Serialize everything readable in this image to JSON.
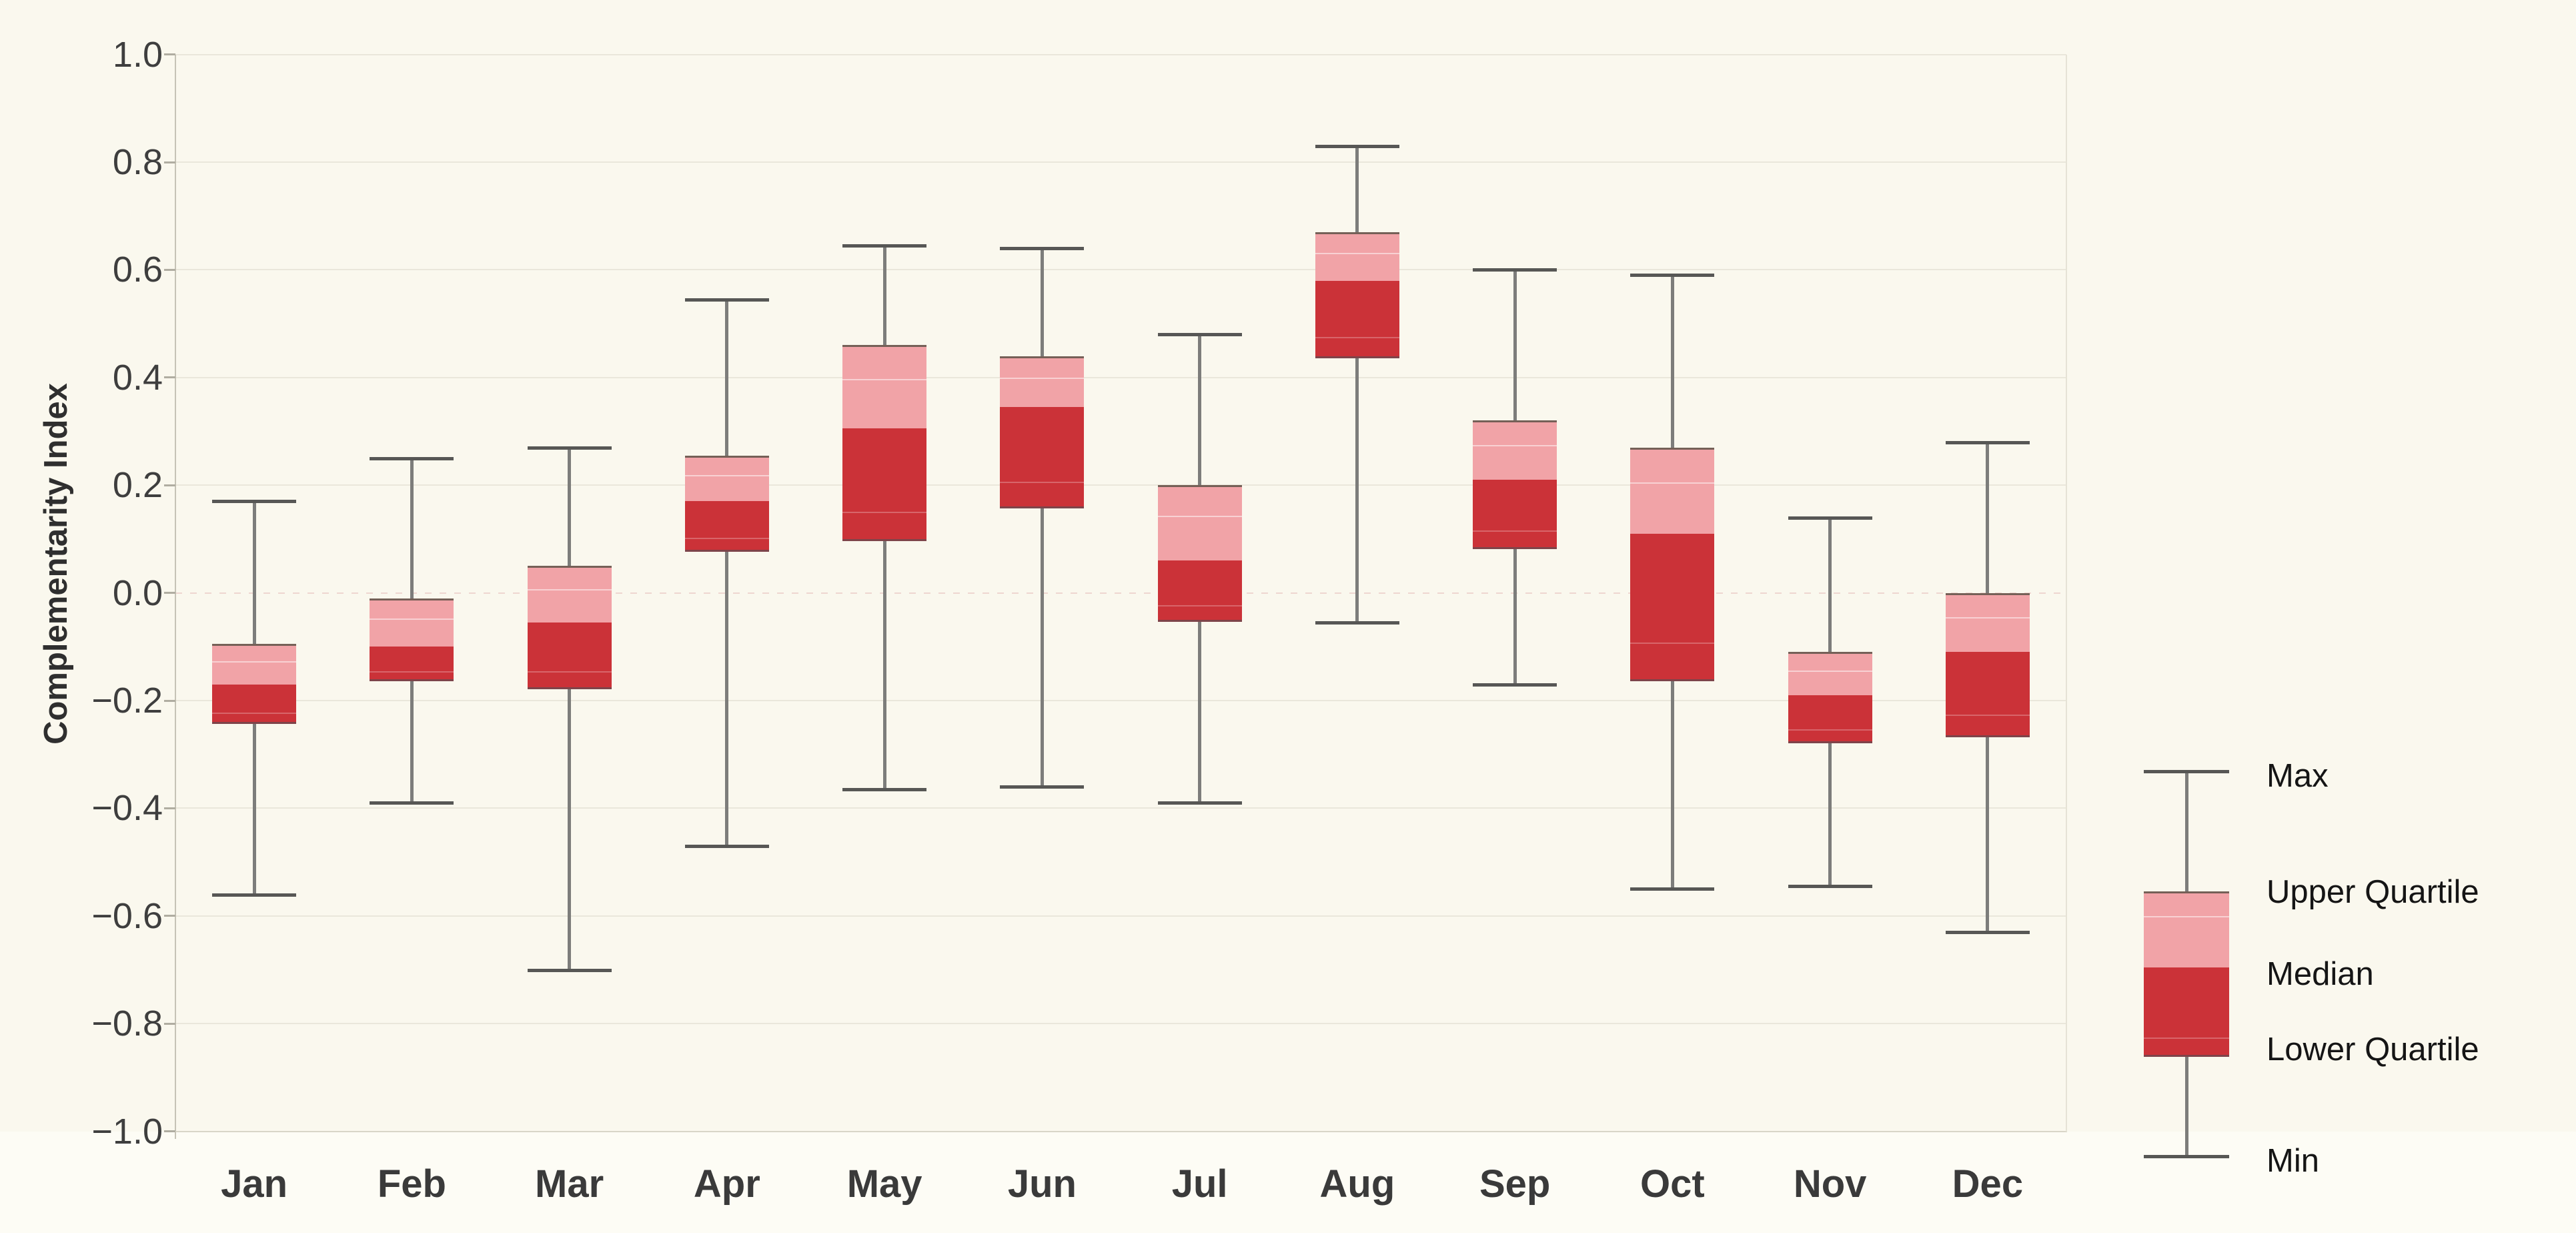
{
  "chart_data": {
    "type": "boxplot",
    "title": "",
    "ylabel": "Complementarity Index",
    "ylim": [
      -1.0,
      1.0
    ],
    "ytick_step": 0.2,
    "grid": "on",
    "legend_position": "right",
    "yticks": [
      {
        "v": 1.0,
        "label": "1.0"
      },
      {
        "v": 0.8,
        "label": "0.8"
      },
      {
        "v": 0.6,
        "label": "0.6"
      },
      {
        "v": 0.4,
        "label": "0.4"
      },
      {
        "v": 0.2,
        "label": "0.2"
      },
      {
        "v": 0.0,
        "label": "0.0"
      },
      {
        "v": -0.2,
        "label": "−0.2"
      },
      {
        "v": -0.4,
        "label": "−0.4"
      },
      {
        "v": -0.6,
        "label": "−0.6"
      },
      {
        "v": -0.8,
        "label": "−0.8"
      },
      {
        "v": -1.0,
        "label": "−1.0"
      }
    ],
    "categories": [
      "Jan",
      "Feb",
      "Mar",
      "Apr",
      "May",
      "Jun",
      "Jul",
      "Aug",
      "Sep",
      "Oct",
      "Nov",
      "Dec"
    ],
    "series": [
      {
        "month": "Jan",
        "min": -0.56,
        "lower_quartile": -0.24,
        "median": -0.17,
        "upper_quartile": -0.095,
        "max": 0.17
      },
      {
        "month": "Feb",
        "min": -0.39,
        "lower_quartile": -0.16,
        "median": -0.1,
        "upper_quartile": -0.01,
        "max": 0.25
      },
      {
        "month": "Mar",
        "min": -0.7,
        "lower_quartile": -0.175,
        "median": -0.055,
        "upper_quartile": 0.05,
        "max": 0.27
      },
      {
        "month": "Apr",
        "min": -0.47,
        "lower_quartile": 0.08,
        "median": 0.17,
        "upper_quartile": 0.255,
        "max": 0.545
      },
      {
        "month": "May",
        "min": -0.365,
        "lower_quartile": 0.1,
        "median": 0.305,
        "upper_quartile": 0.46,
        "max": 0.645
      },
      {
        "month": "Jun",
        "min": -0.36,
        "lower_quartile": 0.16,
        "median": 0.345,
        "upper_quartile": 0.44,
        "max": 0.64
      },
      {
        "month": "Jul",
        "min": -0.39,
        "lower_quartile": -0.05,
        "median": 0.06,
        "upper_quartile": 0.2,
        "max": 0.48
      },
      {
        "month": "Aug",
        "min": -0.055,
        "lower_quartile": 0.44,
        "median": 0.58,
        "upper_quartile": 0.67,
        "max": 0.83
      },
      {
        "month": "Sep",
        "min": -0.17,
        "lower_quartile": 0.085,
        "median": 0.21,
        "upper_quartile": 0.32,
        "max": 0.6
      },
      {
        "month": "Oct",
        "min": -0.55,
        "lower_quartile": -0.16,
        "median": 0.11,
        "upper_quartile": 0.27,
        "max": 0.59
      },
      {
        "month": "Nov",
        "min": -0.545,
        "lower_quartile": -0.275,
        "median": -0.19,
        "upper_quartile": -0.11,
        "max": 0.14
      },
      {
        "month": "Dec",
        "min": -0.63,
        "lower_quartile": -0.265,
        "median": -0.11,
        "upper_quartile": 0.0,
        "max": 0.28
      }
    ],
    "legend": [
      "Max",
      "Upper Quartile",
      "Median",
      "Lower Quartile",
      "Min"
    ],
    "colors": {
      "upper_box": "#f1a3a7",
      "lower_box": "#cb3238",
      "whisker": "#7d7d7b",
      "whisker_cap": "#575755",
      "background": "#faf8ee",
      "gridline": "#eae7db",
      "zero_line": "#eed6d0",
      "text": "#3a3a3a"
    }
  }
}
